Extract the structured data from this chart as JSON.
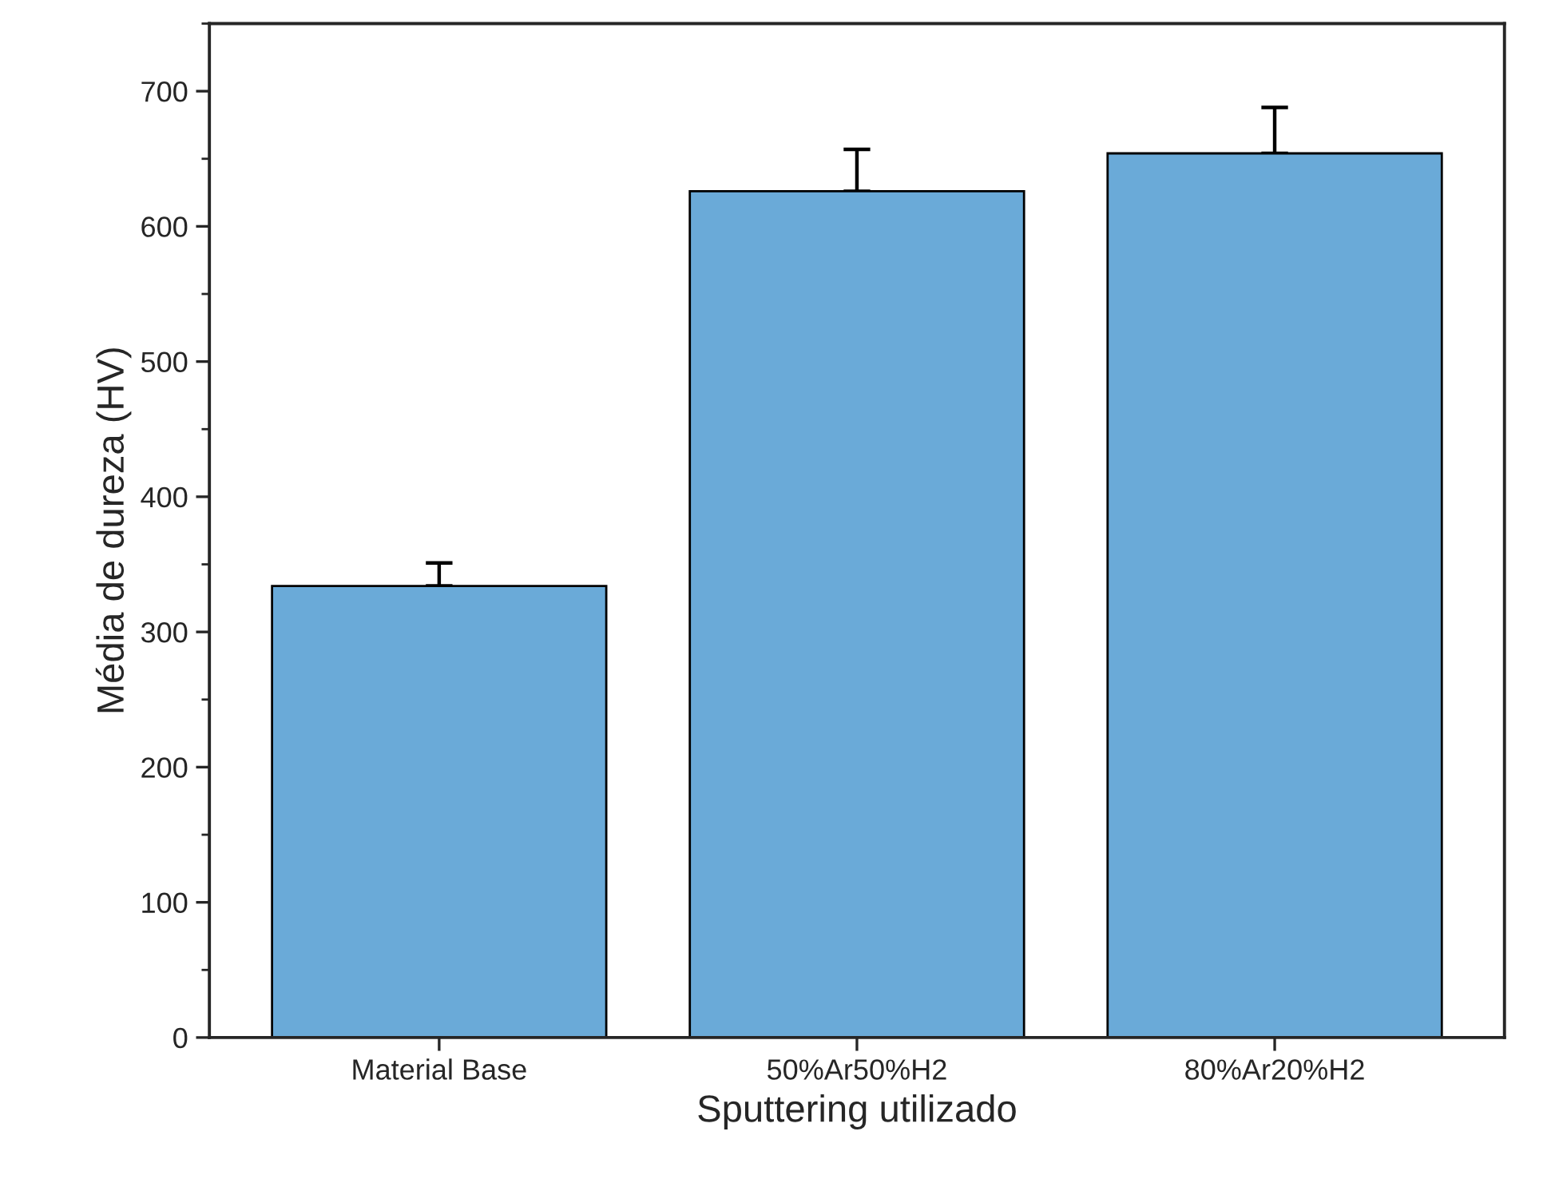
{
  "chart_data": {
    "type": "bar",
    "xlabel": "Sputtering utilizado",
    "ylabel": "Média de dureza (HV)",
    "categories": [
      "Material Base",
      "50%Ar50%H2",
      "80%Ar20%H2"
    ],
    "values": [
      334,
      626,
      654
    ],
    "errors": [
      [
        334,
        351
      ],
      [
        626,
        657
      ],
      [
        654,
        688
      ]
    ],
    "color": "#6aaad8",
    "ylim": [
      0,
      750
    ],
    "yticks": [
      0,
      100,
      200,
      300,
      400,
      500,
      600,
      700
    ],
    "grid": false,
    "legend": false
  }
}
